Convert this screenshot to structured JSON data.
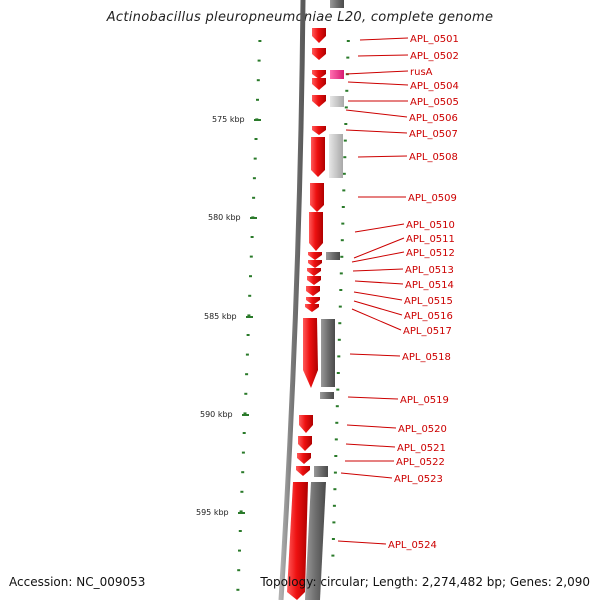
{
  "title": "Actinobacillus pleuropneumoniae L20, complete genome",
  "footer": {
    "accession": "Accession: NC_009053",
    "topology": "Topology: circular; Length: 2,274,482 bp; Genes: 2,090"
  },
  "scale_labels": [
    "575 kbp",
    "580 kbp",
    "585 kbp",
    "590 kbp",
    "595 kbp"
  ],
  "colors": {
    "forward_gene": "#ee1111",
    "reverse_gene_dark": "#6e6e6e",
    "reverse_gene_light": "#c8c8c8",
    "rusA": "#ee2288",
    "backbone": "#808080",
    "tick": "#2a7a2a",
    "label": "#cc0000"
  },
  "gene_labels": [
    "APL_0501",
    "APL_0502",
    "rusA",
    "APL_0504",
    "APL_0505",
    "APL_0506",
    "APL_0507",
    "APL_0508",
    "APL_0509",
    "APL_0510",
    "APL_0511",
    "APL_0512",
    "APL_0513",
    "APL_0514",
    "APL_0515",
    "APL_0516",
    "APL_0517",
    "APL_0518",
    "APL_0519",
    "APL_0520",
    "APL_0521",
    "APL_0522",
    "APL_0523",
    "APL_0524"
  ]
}
